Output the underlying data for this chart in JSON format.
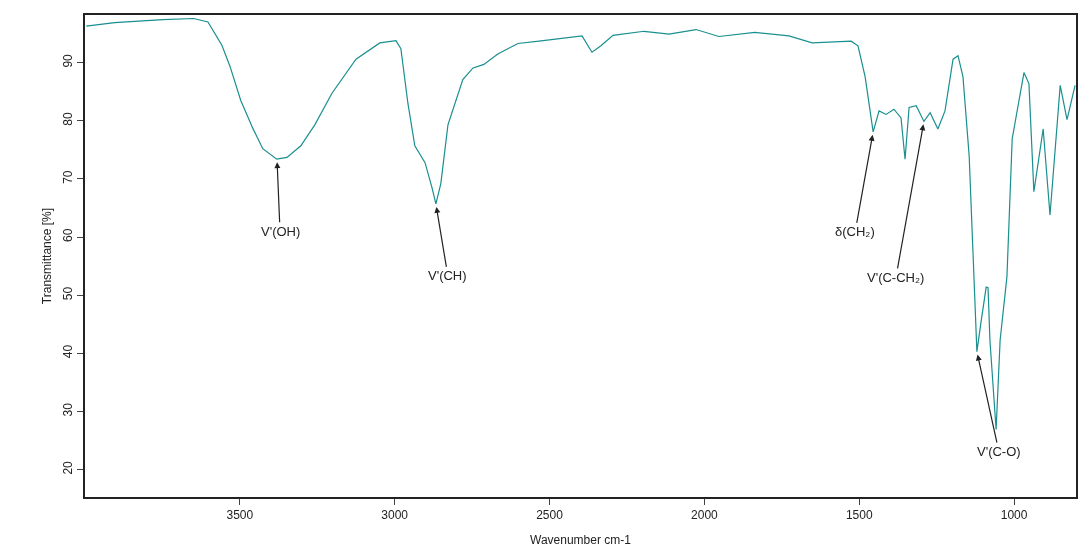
{
  "chart_data": {
    "type": "line",
    "xlabel": "Wavenumber cm-1",
    "ylabel": "Transmittance [%]",
    "xlim": [
      4000,
      800
    ],
    "xticks": [
      3500,
      3000,
      2500,
      2000,
      1500,
      1000
    ],
    "ylim": [
      15.3,
      98.2
    ],
    "yticks": [
      20,
      30,
      40,
      50,
      60,
      70,
      80,
      90
    ],
    "grid": false,
    "marker": "none",
    "line_style": "solid",
    "series": [
      {
        "color": "#1a8f8f",
        "x": [
          3996,
          3904,
          3749,
          3649,
          3603,
          3558,
          3532,
          3497,
          3458,
          3426,
          3381,
          3348,
          3303,
          3258,
          3203,
          3125,
          3048,
          2996,
          2980,
          2957,
          2935,
          2902,
          2880,
          2867,
          2851,
          2828,
          2780,
          2747,
          2712,
          2667,
          2602,
          2534,
          2395,
          2363,
          2334,
          2295,
          2195,
          2114,
          2027,
          1953,
          1837,
          1727,
          1652,
          1526,
          1504,
          1481,
          1455,
          1436,
          1413,
          1388,
          1365,
          1352,
          1339,
          1316,
          1291,
          1271,
          1246,
          1223,
          1197,
          1181,
          1165,
          1145,
          1120,
          1107,
          1090,
          1084,
          1078,
          1058,
          1045,
          1023,
          1006,
          968,
          952,
          936,
          906,
          884,
          851,
          829,
          803
        ],
        "values": [
          96.3,
          96.9,
          97.4,
          97.6,
          97.0,
          93.0,
          89.4,
          83.5,
          78.7,
          75.2,
          73.4,
          73.7,
          75.7,
          79.3,
          84.7,
          90.6,
          93.4,
          93.8,
          92.4,
          82.9,
          75.7,
          72.8,
          68.6,
          65.7,
          69.2,
          79.3,
          87.1,
          89.1,
          89.7,
          91.5,
          93.3,
          93.7,
          94.6,
          91.8,
          92.9,
          94.7,
          95.4,
          94.9,
          95.7,
          94.5,
          95.2,
          94.6,
          93.4,
          93.7,
          92.9,
          87.6,
          78.1,
          81.7,
          81.1,
          82.0,
          80.5,
          73.4,
          82.3,
          82.6,
          79.9,
          81.4,
          78.6,
          81.7,
          90.6,
          91.2,
          87.6,
          74.0,
          40.3,
          45.3,
          51.4,
          51.3,
          42.3,
          26.9,
          42.3,
          53.2,
          76.9,
          88.3,
          86.4,
          67.8,
          78.6,
          63.8,
          86.1,
          80.2,
          86.1
        ]
      }
    ],
    "annotations": [
      {
        "text": "V'(OH)",
        "x": 3380,
        "y": 73.4
      },
      {
        "text": "V'(CH)",
        "x": 2867,
        "y": 65.7
      },
      {
        "text": "δ(CH₂)",
        "x": 1455,
        "y": 78.1
      },
      {
        "text": "V'(C-CH₂)",
        "x": 1291,
        "y": 79.9
      },
      {
        "text": "V'(C-O)",
        "x": 1120,
        "y": 40.3
      }
    ]
  }
}
